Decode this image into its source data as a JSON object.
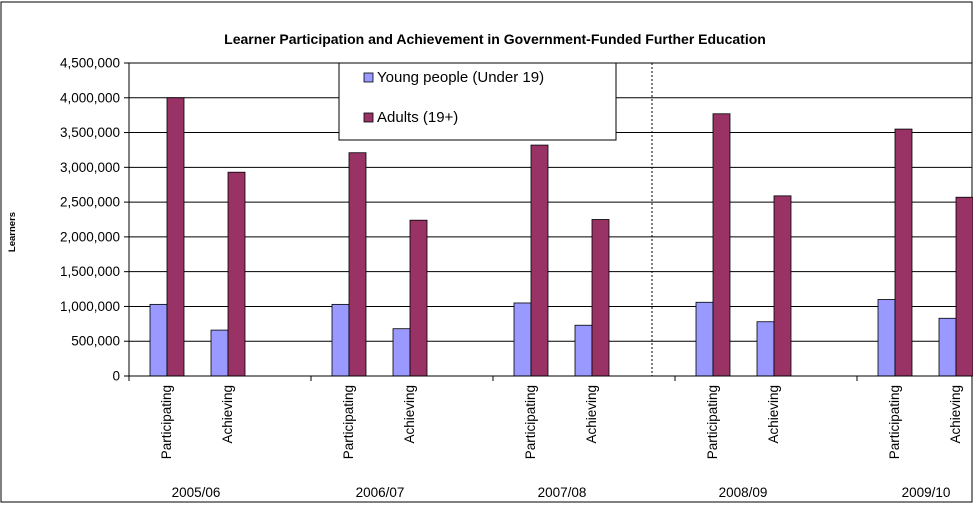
{
  "chart_data": {
    "type": "bar",
    "title": "Learner Participation and Achievement in Government-Funded Further Education",
    "ylabel": "Learners",
    "xlabel": "",
    "ylim": [
      0,
      4500000
    ],
    "yticks": [
      0,
      500000,
      1000000,
      1500000,
      2000000,
      2500000,
      3000000,
      3500000,
      4000000,
      4500000
    ],
    "ytick_labels": [
      "0",
      "500,000",
      "1,000,000",
      "1,500,000",
      "2,000,000",
      "2,500,000",
      "3,000,000",
      "3,500,000",
      "4,000,000",
      "4,500,000"
    ],
    "grid": true,
    "legend_position": "top-center",
    "groups": [
      "2005/06",
      "2006/07",
      "2007/08",
      "2008/09",
      "2009/10"
    ],
    "categories": [
      "Participating",
      "Achieving",
      "Participating",
      "Achieving",
      "Participating",
      "Achieving",
      "Participating",
      "Achieving",
      "Participating",
      "Achieving"
    ],
    "series": [
      {
        "name": "Young people (Under 19)",
        "color": "#9999ff",
        "values": [
          1030000,
          660000,
          1030000,
          680000,
          1050000,
          730000,
          1060000,
          780000,
          1100000,
          830000
        ]
      },
      {
        "name": "Adults (19+)",
        "color": "#993366",
        "values": [
          4000000,
          2930000,
          3210000,
          2240000,
          3320000,
          2250000,
          3770000,
          2590000,
          3550000,
          2570000
        ]
      }
    ],
    "annotations": [
      "dotted vertical divider between 2007/08 and 2008/09"
    ]
  }
}
